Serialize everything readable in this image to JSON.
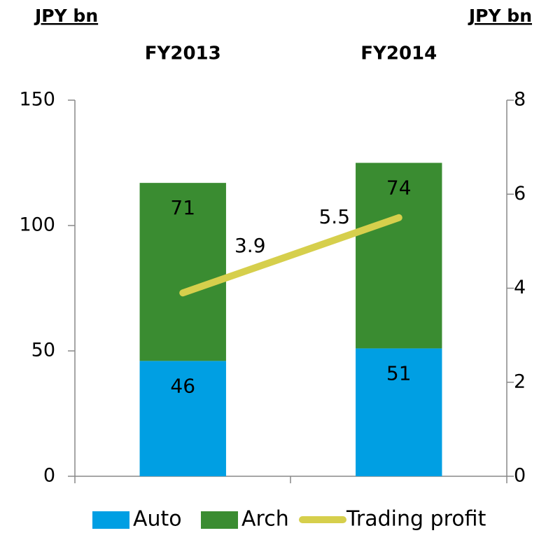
{
  "chart_data": {
    "type": "bar",
    "stacked": true,
    "y_label": "JPY bn",
    "y2_label": "JPY bn",
    "categories": [
      "FY2013",
      "FY2014"
    ],
    "series": [
      {
        "name": "Auto",
        "color": "#009fe3",
        "values": [
          46,
          51
        ]
      },
      {
        "name": "Arch",
        "color": "#3a8c31",
        "values": [
          71,
          74
        ]
      },
      {
        "name": "Trading profit",
        "type": "line",
        "axis": "y2",
        "color": "#d6cf4c",
        "values": [
          3.9,
          5.5
        ]
      }
    ],
    "ylim": [
      0,
      150
    ],
    "yticks": [
      0,
      50,
      100,
      150
    ],
    "y2lim": [
      0,
      8
    ],
    "y2ticks": [
      0,
      2,
      4,
      6,
      8
    ],
    "legend": "bottom"
  }
}
